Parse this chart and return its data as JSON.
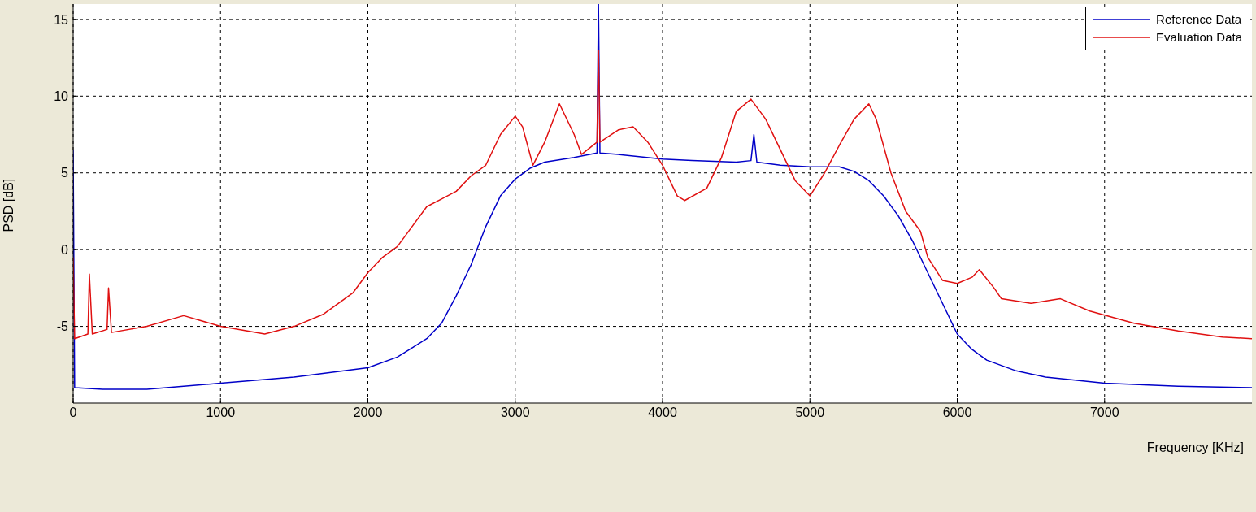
{
  "chart_data": {
    "type": "line",
    "xlabel": "Frequency [KHz]",
    "ylabel": "PSD [dB]",
    "xlim": [
      0,
      8000
    ],
    "ylim": [
      -10,
      16
    ],
    "xticks": [
      0,
      1000,
      2000,
      3000,
      4000,
      5000,
      6000,
      7000
    ],
    "yticks": [
      -5,
      0,
      5,
      10,
      15
    ],
    "grid": true,
    "legend": "top right",
    "line_style": "solid",
    "series": [
      {
        "name": "Reference Data",
        "color": "#0000c8",
        "x": [
          0,
          10,
          200,
          500,
          1000,
          1500,
          2000,
          2200,
          2400,
          2500,
          2600,
          2700,
          2800,
          2900,
          3000,
          3100,
          3200,
          3400,
          3555,
          3565,
          3575,
          3700,
          4000,
          4200,
          4500,
          4600,
          4620,
          4640,
          4800,
          5000,
          5200,
          5300,
          5400,
          5500,
          5600,
          5700,
          5800,
          5900,
          6000,
          6100,
          6200,
          6400,
          6600,
          7000,
          7500,
          8000
        ],
        "values": [
          6.5,
          -9,
          -9.1,
          -9.1,
          -8.7,
          -8.3,
          -7.7,
          -7,
          -5.8,
          -4.8,
          -3,
          -1,
          1.5,
          3.5,
          4.6,
          5.3,
          5.7,
          6,
          6.3,
          16,
          6.3,
          6.2,
          5.9,
          5.8,
          5.7,
          5.8,
          7.5,
          5.7,
          5.5,
          5.4,
          5.4,
          5.1,
          4.5,
          3.5,
          2.2,
          0.5,
          -1.5,
          -3.5,
          -5.5,
          -6.5,
          -7.2,
          -7.9,
          -8.3,
          -8.7,
          -8.9,
          -9
        ]
      },
      {
        "name": "Evaluation Data",
        "color": "#e01010",
        "x": [
          0,
          10,
          100,
          110,
          130,
          230,
          240,
          260,
          500,
          750,
          1000,
          1300,
          1500,
          1700,
          1900,
          2000,
          2100,
          2200,
          2300,
          2400,
          2500,
          2600,
          2700,
          2800,
          2900,
          3000,
          3050,
          3120,
          3200,
          3300,
          3400,
          3450,
          3555,
          3565,
          3575,
          3700,
          3800,
          3900,
          4000,
          4100,
          4150,
          4300,
          4400,
          4500,
          4600,
          4700,
          4800,
          4900,
          5000,
          5100,
          5200,
          5300,
          5400,
          5450,
          5550,
          5650,
          5750,
          5800,
          5900,
          6000,
          6100,
          6150,
          6250,
          6300,
          6500,
          6700,
          6900,
          7200,
          7500,
          7800,
          8000
        ],
        "values": [
          -0.5,
          -5.8,
          -5.5,
          -1.6,
          -5.5,
          -5.2,
          -2.5,
          -5.4,
          -5,
          -4.3,
          -5,
          -5.5,
          -5,
          -4.2,
          -2.8,
          -1.5,
          -0.5,
          0.2,
          1.5,
          2.8,
          3.3,
          3.8,
          4.8,
          5.5,
          7.5,
          8.7,
          8,
          5.5,
          7,
          9.5,
          7.5,
          6.2,
          7,
          13,
          7,
          7.8,
          8,
          7,
          5.5,
          3.5,
          3.2,
          4,
          6,
          9,
          9.8,
          8.5,
          6.5,
          4.5,
          3.5,
          5,
          6.8,
          8.5,
          9.5,
          8.5,
          5,
          2.5,
          1.2,
          -0.5,
          -2,
          -2.2,
          -1.8,
          -1.3,
          -2.5,
          -3.2,
          -3.5,
          -3.2,
          -4,
          -4.8,
          -5.3,
          -5.7,
          -5.8
        ]
      }
    ]
  }
}
